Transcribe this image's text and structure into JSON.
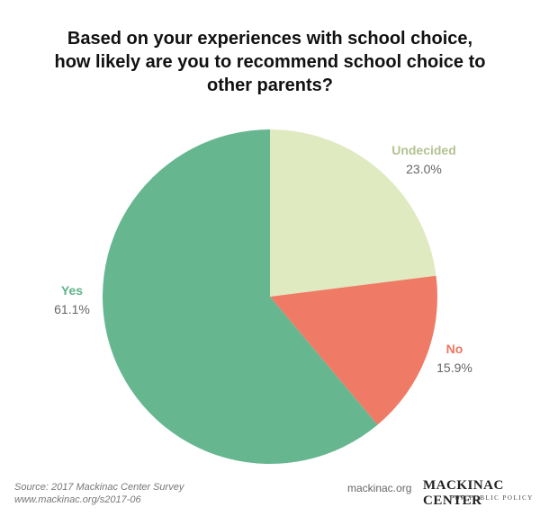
{
  "chart_data": {
    "type": "pie",
    "title": "Based on your experiences with school choice, how likely are you to recommend school choice to other parents?",
    "categories": [
      "Undecided",
      "No",
      "Yes"
    ],
    "values": [
      23.0,
      15.9,
      61.1
    ],
    "value_labels": [
      "23.0%",
      "15.9%",
      "61.1%"
    ],
    "colors": [
      "#dfeac1",
      "#ef7b66",
      "#66b790"
    ]
  },
  "footer": {
    "source": "Source: 2017 Mackinac Center Survey",
    "url": "www.mackinac.org/s2017-06",
    "site": "mackinac.org",
    "logo": "MACKINAC CENTER",
    "logo_subtitle": "FOR PUBLIC POLICY"
  }
}
